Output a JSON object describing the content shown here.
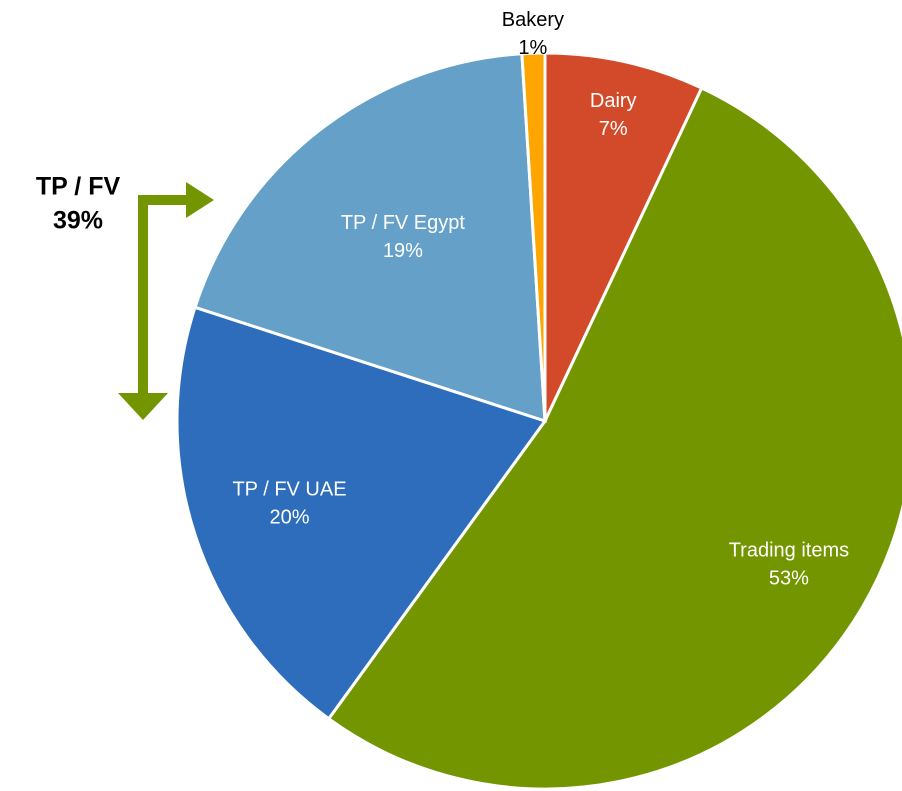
{
  "chart_data": {
    "type": "pie",
    "categories": [
      "Dairy",
      "Trading items",
      "TP / FV UAE",
      "TP / FV Egypt",
      "Bakery"
    ],
    "values": [
      7,
      53,
      20,
      19,
      1
    ],
    "value_labels": [
      "7%",
      "53%",
      "20%",
      "19%",
      "1%"
    ],
    "colors": [
      "#d34a2a",
      "#739600",
      "#2e6dbb",
      "#65a0c8",
      "#ffa500"
    ],
    "annotation": [
      "TP / FV",
      "39%"
    ],
    "annotation_color": "#739600"
  }
}
